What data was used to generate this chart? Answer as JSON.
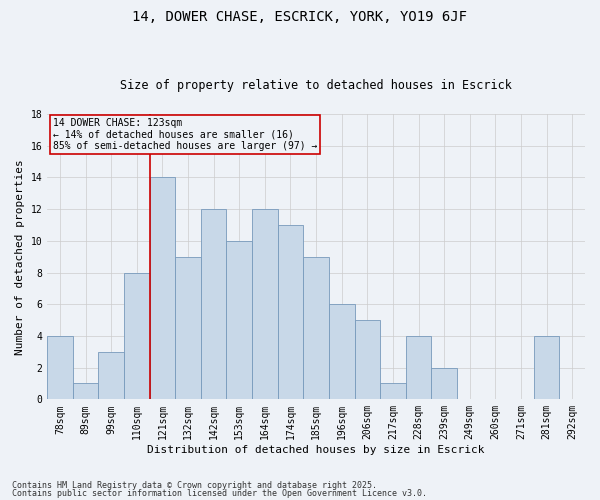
{
  "title1": "14, DOWER CHASE, ESCRICK, YORK, YO19 6JF",
  "title2": "Size of property relative to detached houses in Escrick",
  "xlabel": "Distribution of detached houses by size in Escrick",
  "ylabel": "Number of detached properties",
  "bins": [
    "78sqm",
    "89sqm",
    "99sqm",
    "110sqm",
    "121sqm",
    "132sqm",
    "142sqm",
    "153sqm",
    "164sqm",
    "174sqm",
    "185sqm",
    "196sqm",
    "206sqm",
    "217sqm",
    "228sqm",
    "239sqm",
    "249sqm",
    "260sqm",
    "271sqm",
    "281sqm",
    "292sqm"
  ],
  "values": [
    4,
    1,
    3,
    8,
    14,
    9,
    12,
    10,
    12,
    11,
    9,
    6,
    5,
    1,
    4,
    2,
    0,
    0,
    0,
    4,
    0
  ],
  "bar_color": "#c8d8e8",
  "bar_edge_color": "#7799bb",
  "grid_color": "#cccccc",
  "vline_bin_index": 4,
  "vline_color": "#cc0000",
  "annotation_text": "14 DOWER CHASE: 123sqm\n← 14% of detached houses are smaller (16)\n85% of semi-detached houses are larger (97) →",
  "annotation_box_color": "#cc0000",
  "ylim": [
    0,
    18
  ],
  "yticks": [
    0,
    2,
    4,
    6,
    8,
    10,
    12,
    14,
    16,
    18
  ],
  "footer1": "Contains HM Land Registry data © Crown copyright and database right 2025.",
  "footer2": "Contains public sector information licensed under the Open Government Licence v3.0.",
  "bg_color": "#eef2f7",
  "title_fontsize": 10,
  "subtitle_fontsize": 8.5,
  "axis_label_fontsize": 8,
  "tick_fontsize": 7,
  "annotation_fontsize": 7,
  "footer_fontsize": 6
}
